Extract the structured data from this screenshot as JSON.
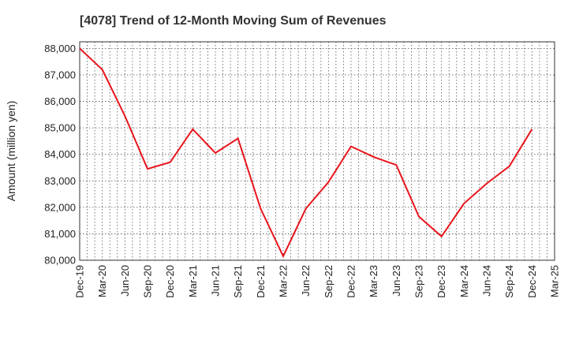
{
  "chart_data": {
    "type": "line",
    "title": "[4078]  Trend of 12-Month Moving Sum of Revenues",
    "xlabel": "",
    "ylabel": "Amount (million yen)",
    "x_ticks": [
      "Dec-19",
      "Mar-20",
      "Jun-20",
      "Sep-20",
      "Dec-20",
      "Mar-21",
      "Jun-21",
      "Sep-21",
      "Dec-21",
      "Mar-22",
      "Jun-22",
      "Sep-22",
      "Dec-22",
      "Mar-23",
      "Jun-23",
      "Sep-23",
      "Dec-23",
      "Mar-24",
      "Jun-24",
      "Sep-24",
      "Dec-24",
      "Mar-25"
    ],
    "y_ticks": [
      "80,000",
      "81,000",
      "82,000",
      "83,000",
      "84,000",
      "85,000",
      "86,000",
      "87,000",
      "88,000"
    ],
    "ylim": [
      80000,
      88250
    ],
    "grid": true,
    "series": [
      {
        "color": "#e8141b",
        "x": [
          "Dec-19",
          "Mar-20",
          "Jun-20",
          "Sep-20",
          "Dec-20",
          "Mar-21",
          "Jun-21",
          "Sep-21",
          "Dec-21",
          "Mar-22",
          "Jun-22",
          "Sep-22",
          "Dec-22",
          "Mar-23",
          "Jun-23",
          "Sep-23",
          "Dec-23",
          "Mar-24",
          "Jun-24",
          "Sep-24",
          "Dec-24"
        ],
        "values": [
          88000,
          87200,
          85450,
          83450,
          83700,
          84950,
          84050,
          84600,
          81950,
          80150,
          81950,
          82950,
          84300,
          83900,
          83600,
          81650,
          80900,
          82150,
          82900,
          83550,
          84950
        ]
      }
    ]
  }
}
